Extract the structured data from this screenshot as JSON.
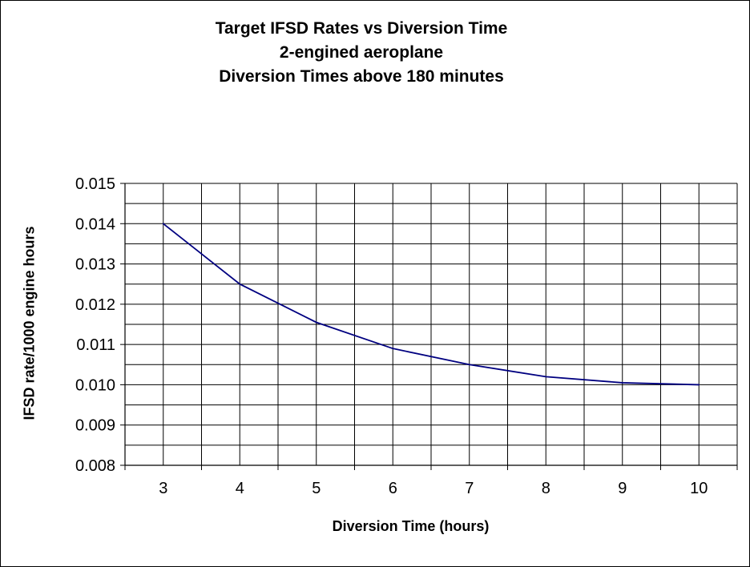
{
  "chart_data": {
    "type": "line",
    "title_lines": [
      "Target IFSD Rates vs Diversion Time",
      "2-engined aeroplane",
      "Diversion Times above  180 minutes"
    ],
    "xlabel": "Diversion Time (hours)",
    "ylabel": "IFSD rate/1000 engine hours",
    "categories": [
      "3",
      "4",
      "5",
      "6",
      "7",
      "8",
      "9",
      "10"
    ],
    "x": [
      3,
      4,
      5,
      6,
      7,
      8,
      9,
      10
    ],
    "y_ticks": [
      "0.008",
      "0.009",
      "0.010",
      "0.011",
      "0.012",
      "0.013",
      "0.014",
      "0.015"
    ],
    "ylim": [
      0.008,
      0.015
    ],
    "grid": true,
    "series": [
      {
        "values": [
          0.014,
          0.0125,
          0.01155,
          0.0109,
          0.0105,
          0.0102,
          0.01005,
          0.01
        ],
        "color": "#000080"
      }
    ]
  }
}
